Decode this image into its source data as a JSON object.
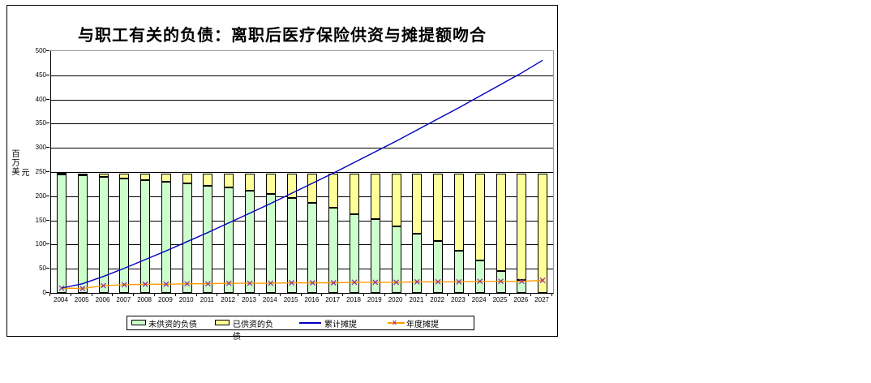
{
  "chart": {
    "title": "与职工有关的负债：离职后医疗保险供资与摊提额吻合",
    "y_axis_title": "百万美元",
    "y_axis_title_line1": "百万美",
    "y_axis_title_line2": "元"
  },
  "colors": {
    "unfunded_bar": "#ccffcc",
    "funded_bar": "#ffff99",
    "cumulative_line": "#0000bf",
    "annual_line": "#ff9900",
    "annual_marker": "#993399",
    "gridline": "#000000",
    "plot_border": "#999999",
    "frame_border": "#000000"
  },
  "legend": {
    "items": [
      {
        "name": "unfunded",
        "label": "未供资的负债",
        "label_wrap": "",
        "swatch": "bar",
        "color": "#ccffcc"
      },
      {
        "name": "funded",
        "label": "已供资的负",
        "label_wrap": "债",
        "swatch": "bar",
        "color": "#ffff99"
      },
      {
        "name": "cumulative",
        "label": "累计摊提",
        "label_wrap": "",
        "swatch": "line",
        "color": "#0000bf"
      },
      {
        "name": "annual",
        "label": "年度摊提",
        "label_wrap": "",
        "swatch": "line-marker",
        "color": "#ff9900",
        "marker": "x",
        "marker_color": "#993399"
      }
    ]
  },
  "chart_data": {
    "type": "bar",
    "subtype": "stacked-bars-with-lines",
    "title": "与职工有关的负债：离职后医疗保险供资与摊提额吻合",
    "xlabel": "",
    "ylabel": "百万美元",
    "ylim": [
      0,
      500
    ],
    "yticks": [
      0,
      50,
      100,
      150,
      200,
      250,
      300,
      350,
      400,
      450,
      500
    ],
    "grid": true,
    "legend_position": "bottom",
    "categories": [
      "2004",
      "2005",
      "2006",
      "2007",
      "2008",
      "2009",
      "2010",
      "2011",
      "2012",
      "2013",
      "2014",
      "2015",
      "2016",
      "2017",
      "2018",
      "2019",
      "2020",
      "2021",
      "2022",
      "2023",
      "2024",
      "2025",
      "2026",
      "2027"
    ],
    "series": [
      {
        "name": "未供资的负债",
        "type": "bar",
        "stacked": true,
        "color": "#ccffcc",
        "values": [
          245,
          243,
          240,
          237,
          233,
          230,
          227,
          222,
          218,
          211,
          204,
          197,
          186,
          176,
          163,
          152,
          138,
          123,
          107,
          88,
          68,
          46,
          27,
          0
        ]
      },
      {
        "name": "已供资的负债",
        "type": "bar",
        "stacked": true,
        "color": "#ffff99",
        "values": [
          2,
          4,
          7,
          10,
          14,
          17,
          20,
          25,
          29,
          36,
          43,
          50,
          61,
          71,
          84,
          95,
          109,
          124,
          140,
          159,
          179,
          201,
          220,
          247
        ]
      },
      {
        "name": "累计摊提",
        "type": "line",
        "color": "#0000bf",
        "values": [
          10,
          19,
          34,
          51,
          69,
          87,
          106,
          125,
          145,
          165,
          185,
          206,
          227,
          248,
          270,
          292,
          314,
          337,
          360,
          383,
          407,
          431,
          455,
          481
        ]
      },
      {
        "name": "年度摊提",
        "type": "line",
        "color": "#ff9900",
        "marker": "x",
        "marker_color": "#993399",
        "values": [
          10,
          9,
          15,
          17,
          18,
          18,
          19,
          19,
          20,
          20,
          20,
          21,
          21,
          21,
          22,
          22,
          22,
          23,
          23,
          23,
          24,
          24,
          24,
          26
        ]
      }
    ]
  }
}
